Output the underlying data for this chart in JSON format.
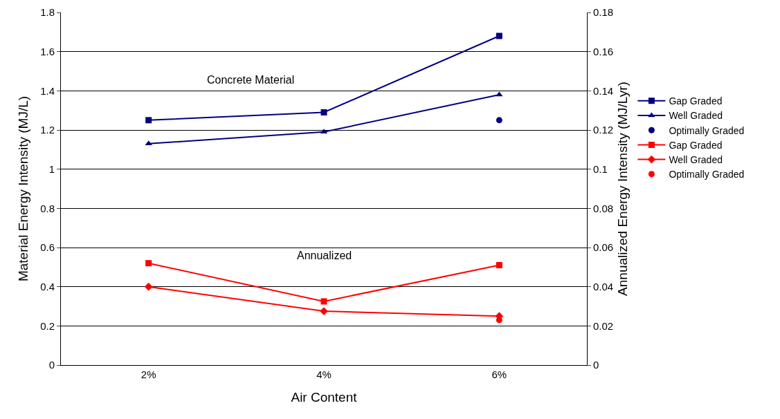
{
  "chart_data": {
    "type": "line",
    "xlabel": "Air Content",
    "ylabel": "Material Energy Intensity (MJ/L)",
    "y2label": "Annualized Energy Intensity (MJ/Lyr)",
    "categories": [
      "2%",
      "4%",
      "6%"
    ],
    "ylim": [
      0,
      1.8
    ],
    "yticks": [
      0,
      0.2,
      0.4,
      0.6,
      0.8,
      1,
      1.2,
      1.4,
      1.6,
      1.8
    ],
    "y2lim": [
      0,
      0.18
    ],
    "y2ticks": [
      0,
      0.02,
      0.04,
      0.06,
      0.08,
      0.1,
      0.12,
      0.14,
      0.16,
      0.18
    ],
    "grid": "y",
    "legend": "right",
    "annotations": [
      "Concrete Material",
      "Annualized"
    ],
    "series": [
      {
        "name": "Gap Graded",
        "color": "#000080",
        "marker": "square",
        "values": [
          1.25,
          1.29,
          1.68
        ]
      },
      {
        "name": "Well Graded",
        "color": "#000080",
        "marker": "triangle",
        "values": [
          1.13,
          1.19,
          1.38
        ]
      },
      {
        "name": "Optimally Graded",
        "type": "scatter",
        "color": "#000080",
        "marker": "circle",
        "values": [
          null,
          null,
          1.25
        ]
      },
      {
        "name": "Gap Graded",
        "color": "#ff0000",
        "marker": "square",
        "axis": "y2",
        "values": [
          0.052,
          0.0325,
          0.051
        ]
      },
      {
        "name": "Well Graded",
        "color": "#ff0000",
        "marker": "diamond",
        "axis": "y2",
        "values": [
          0.04,
          0.0275,
          0.025
        ]
      },
      {
        "name": "Optimally Graded",
        "type": "scatter",
        "color": "#ff0000",
        "marker": "circle",
        "axis": "y2",
        "values": [
          null,
          null,
          0.023
        ]
      }
    ]
  }
}
